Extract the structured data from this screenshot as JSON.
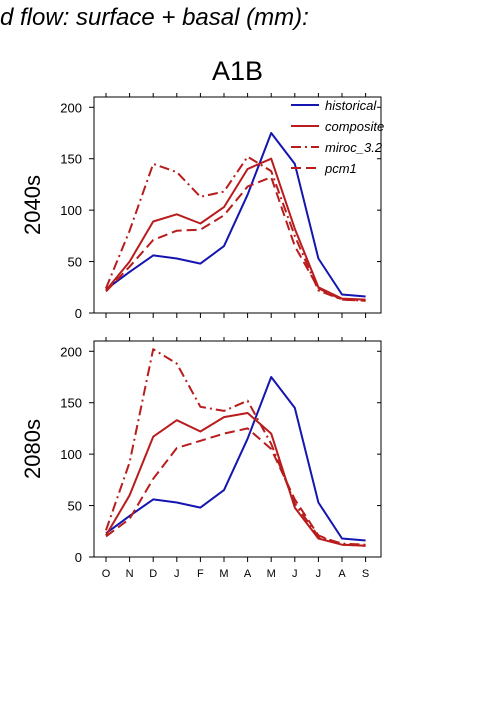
{
  "title": "d flow: surface + basal (mm):",
  "scenario": "A1B",
  "chart_data": {
    "type": "line",
    "x": [
      "O",
      "N",
      "D",
      "J",
      "F",
      "M",
      "A",
      "M",
      "J",
      "J",
      "A",
      "S"
    ],
    "ylim": [
      0,
      210
    ],
    "yticks": [
      0,
      50,
      100,
      150,
      200
    ],
    "legend_position": "top-right",
    "colors": {
      "historical": "#1515b0",
      "projection": "#b81c1c"
    },
    "panels": [
      {
        "row_label": "2040s",
        "series": [
          {
            "name": "historical",
            "style": "solid",
            "color": "#1515b0",
            "values": [
              23,
              40,
              56,
              53,
              48,
              65,
              115,
              175,
              145,
              53,
              18,
              16
            ]
          },
          {
            "name": "composite",
            "style": "solid",
            "color": "#b81c1c",
            "values": [
              22,
              50,
              89,
              96,
              87,
              103,
              140,
              150,
              82,
              25,
              14,
              13
            ]
          },
          {
            "name": "miroc_3.2",
            "style": "dashdot",
            "color": "#b81c1c",
            "values": [
              24,
              80,
              145,
              137,
              113,
              118,
              152,
              138,
              75,
              22,
              13,
              12
            ]
          },
          {
            "name": "pcm1",
            "style": "dashed",
            "color": "#b81c1c",
            "values": [
              21,
              45,
              71,
              80,
              81,
              95,
              123,
              132,
              65,
              24,
              13,
              12
            ]
          }
        ]
      },
      {
        "row_label": "2080s",
        "series": [
          {
            "name": "historical",
            "style": "solid",
            "color": "#1515b0",
            "values": [
              23,
              40,
              56,
              53,
              48,
              65,
              115,
              175,
              145,
              53,
              18,
              16
            ]
          },
          {
            "name": "composite",
            "style": "solid",
            "color": "#b81c1c",
            "values": [
              21,
              60,
              117,
              133,
              122,
              136,
              140,
              120,
              48,
              18,
              12,
              11
            ]
          },
          {
            "name": "miroc_3.2",
            "style": "dashdot",
            "color": "#b81c1c",
            "values": [
              26,
              92,
              202,
              188,
              146,
              142,
              152,
              110,
              52,
              20,
              13,
              12
            ]
          },
          {
            "name": "pcm1",
            "style": "dashed",
            "color": "#b81c1c",
            "values": [
              20,
              37,
              76,
              106,
              113,
              120,
              125,
              105,
              56,
              21,
              12,
              11
            ]
          }
        ]
      }
    ]
  }
}
